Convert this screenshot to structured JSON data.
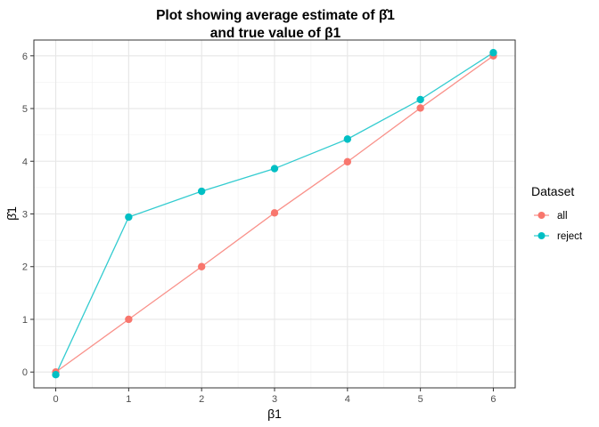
{
  "chart_data": {
    "type": "line",
    "title_line1": "Plot showing average estimate of β̂1",
    "title_line2": "and true value of β1",
    "xlabel": "β1",
    "ylabel": "β̂1",
    "x": [
      0,
      1,
      2,
      3,
      4,
      5,
      6
    ],
    "xlim": [
      -0.3,
      6.3
    ],
    "ylim": [
      -0.3,
      6.3
    ],
    "xticks": [
      0,
      1,
      2,
      3,
      4,
      5,
      6
    ],
    "yticks": [
      0,
      1,
      2,
      3,
      4,
      5,
      6
    ],
    "grid": true,
    "legend_position": "right",
    "legend_title": "Dataset",
    "series": [
      {
        "name": "all",
        "color": "#F8766D",
        "values": [
          0.0,
          1.0,
          2.0,
          3.02,
          3.99,
          5.01,
          6.0
        ]
      },
      {
        "name": "reject",
        "color": "#00BFC4",
        "values": [
          -0.05,
          2.94,
          3.43,
          3.86,
          4.42,
          5.17,
          6.06
        ]
      }
    ]
  }
}
